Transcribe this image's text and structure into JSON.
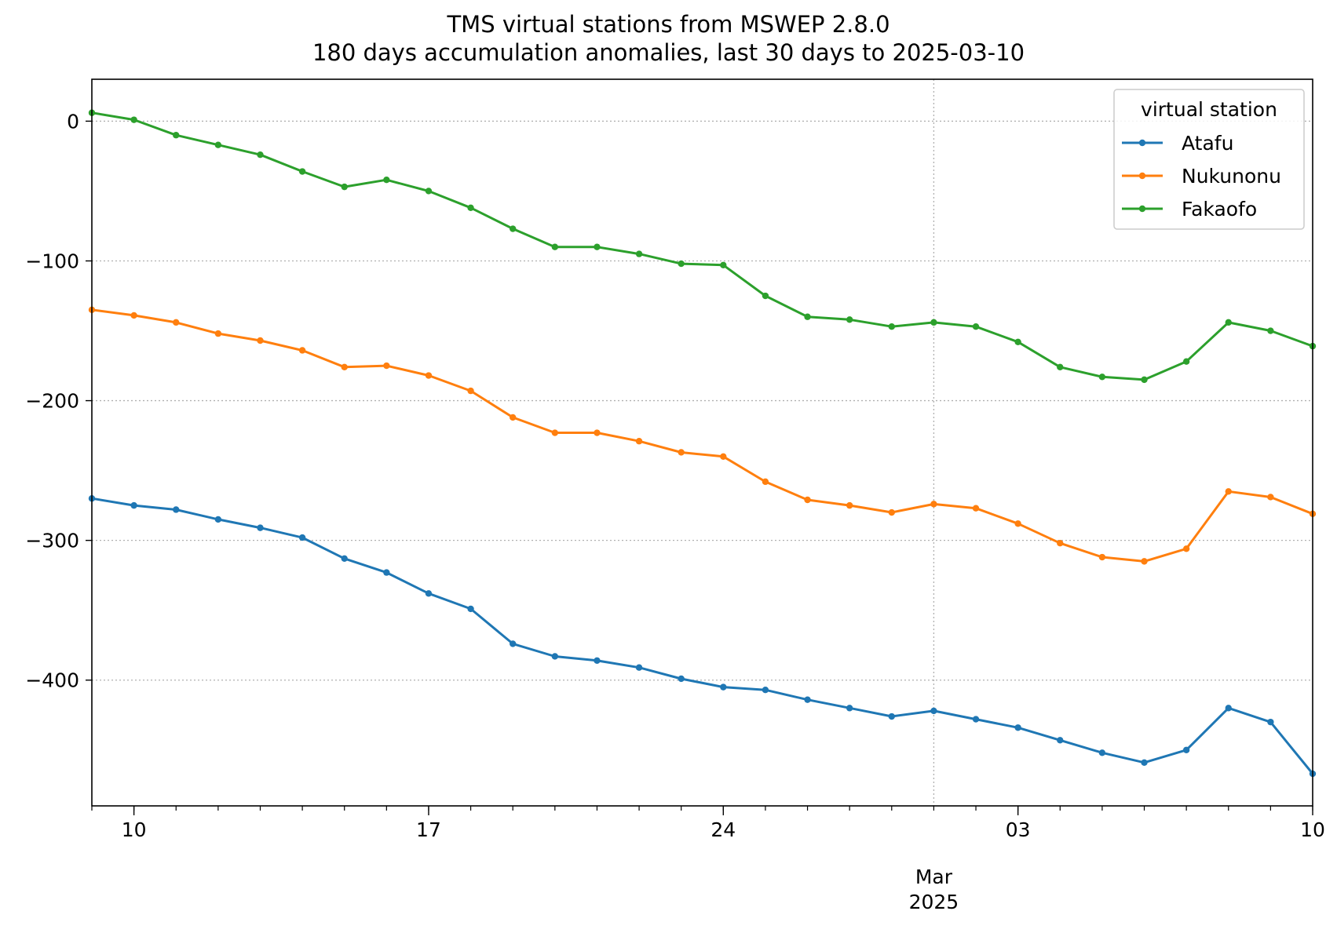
{
  "chart_data": {
    "type": "line",
    "title": "TMS virtual stations from MSWEP 2.8.0",
    "subtitle": "180 days accumulation anomalies, last 30 days to 2025-03-10",
    "xlabel": "",
    "ylabel": "",
    "x_range": [
      "2025-02-09",
      "2025-03-10"
    ],
    "ylim": [
      -490,
      30
    ],
    "yticks": [
      0,
      -100,
      -200,
      -300,
      -400
    ],
    "ytick_labels": [
      "0",
      "−100",
      "−200",
      "−300",
      "−400"
    ],
    "xticks": [
      {
        "date": "2025-02-10",
        "label": "10"
      },
      {
        "date": "2025-02-17",
        "label": "17"
      },
      {
        "date": "2025-02-24",
        "label": "24"
      },
      {
        "date": "2025-03-03",
        "label": "03"
      },
      {
        "date": "2025-03-10",
        "label": "10"
      }
    ],
    "month_label": {
      "date": "2025-03-01",
      "month": "Mar",
      "year": "2025"
    },
    "grid": "horizontal dotted at y ticks, vertical dotted at month start",
    "legend": {
      "title": "virtual station",
      "placement": "top-right"
    },
    "x": [
      "2025-02-09",
      "2025-02-10",
      "2025-02-11",
      "2025-02-12",
      "2025-02-13",
      "2025-02-14",
      "2025-02-15",
      "2025-02-16",
      "2025-02-17",
      "2025-02-18",
      "2025-02-19",
      "2025-02-20",
      "2025-02-21",
      "2025-02-22",
      "2025-02-23",
      "2025-02-24",
      "2025-02-25",
      "2025-02-26",
      "2025-02-27",
      "2025-02-28",
      "2025-03-01",
      "2025-03-02",
      "2025-03-03",
      "2025-03-04",
      "2025-03-05",
      "2025-03-06",
      "2025-03-07",
      "2025-03-08",
      "2025-03-09",
      "2025-03-10"
    ],
    "series": [
      {
        "name": "Atafu",
        "color": "#1f77b4",
        "values": [
          -270,
          -275,
          -278,
          -285,
          -291,
          -298,
          -313,
          -323,
          -338,
          -349,
          -374,
          -383,
          -386,
          -391,
          -399,
          -405,
          -407,
          -414,
          -420,
          -426,
          -422,
          -428,
          -434,
          -443,
          -452,
          -459,
          -450,
          -420,
          -430,
          -467
        ]
      },
      {
        "name": "Nukunonu",
        "color": "#ff7f0e",
        "values": [
          -135,
          -139,
          -144,
          -152,
          -157,
          -164,
          -176,
          -175,
          -182,
          -193,
          -212,
          -223,
          -223,
          -229,
          -237,
          -240,
          -258,
          -271,
          -275,
          -280,
          -274,
          -277,
          -288,
          -302,
          -312,
          -315,
          -306,
          -265,
          -269,
          -281
        ]
      },
      {
        "name": "Fakaofo",
        "color": "#2ca02c",
        "values": [
          6,
          1,
          -10,
          -17,
          -24,
          -36,
          -47,
          -42,
          -50,
          -62,
          -77,
          -90,
          -90,
          -95,
          -102,
          -103,
          -125,
          -140,
          -142,
          -147,
          -144,
          -147,
          -158,
          -176,
          -183,
          -185,
          -172,
          -144,
          -150,
          -161
        ]
      }
    ]
  }
}
